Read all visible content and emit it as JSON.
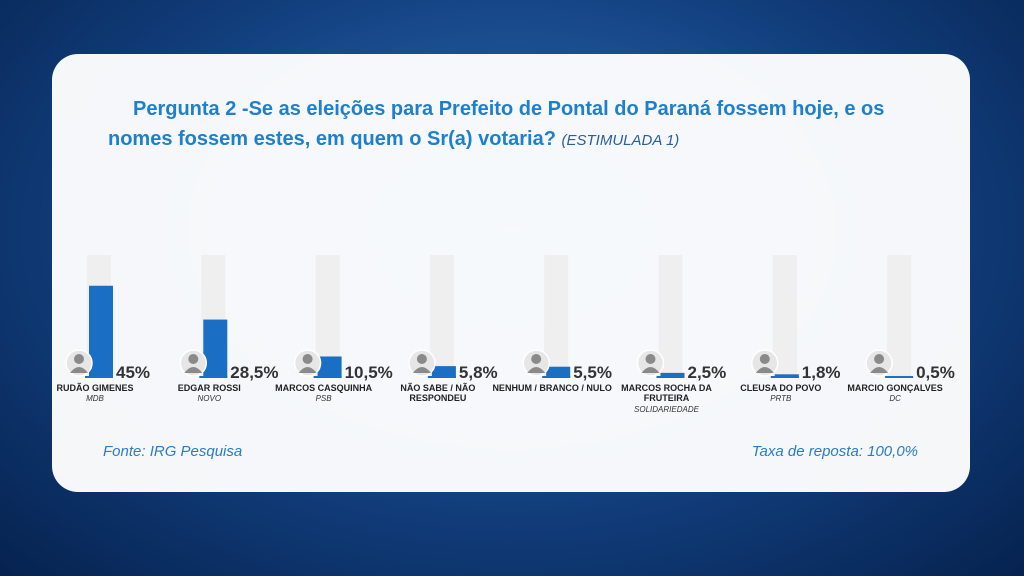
{
  "chart_data": {
    "type": "bar",
    "title": "Pergunta 2 -Se as eleições para Prefeito de Pontal do Paraná fossem hoje, e os nomes fossem estes, em quem o Sr(a) votaria?",
    "subtitle": "(ESTIMULADA 1)",
    "categories": [
      "RUDÃO GIMENES",
      "EDGAR ROSSI",
      "MARCOS CASQUINHA",
      "NÃO SABE / NÃO RESPONDEU",
      "NENHUM / BRANCO / NULO",
      "MARCOS ROCHA DA FRUTEIRA",
      "CLEUSA DO POVO",
      "MARCIO GONÇALVES"
    ],
    "parties": [
      "MDB",
      "NOVO",
      "PSB",
      null,
      null,
      "SOLIDARIEDADE",
      "PRTB",
      "DC"
    ],
    "values": [
      45,
      28.5,
      10.5,
      5.8,
      5.5,
      2.5,
      1.8,
      0.5
    ],
    "value_labels": [
      "45%",
      "28,5%",
      "10,5%",
      "5,8%",
      "5,5%",
      "2,5%",
      "1,8%",
      "0,5%"
    ],
    "color": "#1a6fc4",
    "ylim": [
      0,
      60
    ],
    "source": "Fonte: IRG Pesquisa",
    "response_rate": "Taxa de reposta: 100,0%"
  }
}
